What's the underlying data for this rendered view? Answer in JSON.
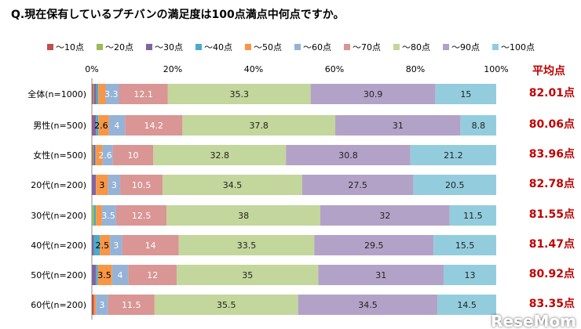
{
  "chart_data": {
    "type": "bar",
    "orientation": "horizontal",
    "stacked": true,
    "title": "Q.現在保有しているプチバンの満足度は100点満点中何点ですか。",
    "xlim": [
      0,
      100
    ],
    "x_ticks": [
      "0%",
      "20%",
      "40%",
      "60%",
      "80%",
      "100%"
    ],
    "legend_position": "top",
    "grid": false,
    "categories": [
      "全体(n=1000)",
      "男性(n=500)",
      "女性(n=500)",
      "20代(n=200)",
      "30代(n=200)",
      "40代(n=200)",
      "50代(n=200)",
      "60代(n=200)"
    ],
    "series": [
      {
        "name": "～10点",
        "color": "#c0504d",
        "values": [
          0.3,
          0.2,
          0.2,
          0,
          0,
          0,
          0,
          0.5
        ]
      },
      {
        "name": "～20点",
        "color": "#9bbb59",
        "values": [
          0.2,
          0,
          0.2,
          0,
          0.5,
          0,
          0,
          0
        ]
      },
      {
        "name": "～30点",
        "color": "#8064a2",
        "values": [
          0.6,
          0.8,
          0.4,
          1,
          0,
          0.5,
          1,
          0
        ]
      },
      {
        "name": "～40点",
        "color": "#4bacc6",
        "values": [
          0.5,
          0.6,
          0.2,
          0,
          0.5,
          1.5,
          0.5,
          0
        ]
      },
      {
        "name": "～50点",
        "color": "#f79646",
        "values": [
          1.8,
          2.6,
          1.6,
          3,
          1.5,
          2.5,
          3.5,
          0.5
        ]
      },
      {
        "name": "～60点",
        "color": "#95b3d7",
        "values": [
          3.3,
          4,
          2.6,
          3,
          3.5,
          3,
          4,
          3
        ]
      },
      {
        "name": "～70点",
        "color": "#d99694",
        "values": [
          12.1,
          14.2,
          10,
          10.5,
          12.5,
          14,
          12,
          11.5
        ]
      },
      {
        "name": "～80点",
        "color": "#c3d69b",
        "values": [
          35.3,
          37.8,
          32.8,
          34.5,
          38,
          33.5,
          35,
          35.5
        ]
      },
      {
        "name": "～90点",
        "color": "#b3a2c7",
        "values": [
          30.9,
          31,
          30.8,
          27.5,
          32,
          29.5,
          31,
          34.5
        ]
      },
      {
        "name": "～100点",
        "color": "#93cddd",
        "values": [
          15,
          8.8,
          21.2,
          20.5,
          11.5,
          15.5,
          13,
          14.5
        ]
      }
    ],
    "data_labels": [
      [
        null,
        null,
        null,
        null,
        null,
        "3.3",
        "12.1",
        "35.3",
        "30.9",
        "15"
      ],
      [
        null,
        null,
        null,
        null,
        "2.6",
        "4",
        "14.2",
        "37.8",
        "31",
        "8.8"
      ],
      [
        null,
        null,
        null,
        null,
        null,
        "2.6",
        "10",
        "32.8",
        "30.8",
        "21.2"
      ],
      [
        null,
        null,
        null,
        null,
        "3",
        "3",
        "10.5",
        "34.5",
        "27.5",
        "20.5"
      ],
      [
        null,
        null,
        null,
        null,
        null,
        "3.5",
        "12.5",
        "38",
        "32",
        "11.5"
      ],
      [
        null,
        null,
        null,
        null,
        "2.5",
        "3",
        "14",
        "33.5",
        "29.5",
        "15.5"
      ],
      [
        null,
        null,
        null,
        null,
        "3.5",
        "4",
        "12",
        "35",
        "31",
        "13"
      ],
      [
        null,
        null,
        null,
        null,
        null,
        "3",
        "11.5",
        "35.5",
        "34.5",
        "14.5"
      ]
    ],
    "average_header": "平均点",
    "averages": [
      "82.01点",
      "80.06点",
      "83.96点",
      "82.78点",
      "81.55点",
      "81.47点",
      "80.92点",
      "83.35点"
    ]
  },
  "logo": "ReseMom"
}
